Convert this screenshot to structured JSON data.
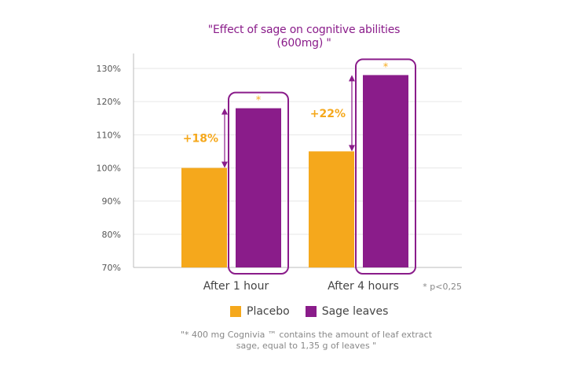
{
  "colors": {
    "placebo": "#F5A81C",
    "sage": "#8A1C8A",
    "title": "#8A1C8A",
    "delta": "#F5A81C",
    "star": "#F5A81C",
    "grid": "#E6E6E6"
  },
  "chart_data": {
    "type": "bar",
    "title_lines": [
      "\"Effect of sage on cognitive abilities",
      "(600mg) \""
    ],
    "categories": [
      "After 1 hour",
      "After 4 hours"
    ],
    "series": [
      {
        "name": "Placebo",
        "values": [
          100,
          105
        ]
      },
      {
        "name": "Sage leaves",
        "values": [
          118,
          128
        ]
      }
    ],
    "ylim": [
      70,
      130
    ],
    "yticks": [
      70,
      80,
      90,
      100,
      110,
      120,
      130
    ],
    "ytick_labels": [
      "70%",
      "80%",
      "90%",
      "100%",
      "110%",
      "120%",
      "130%"
    ],
    "grid": true,
    "legend_position": "bottom",
    "annotations": {
      "deltas": [
        "+18%",
        "+22%"
      ],
      "significance_marker": "*",
      "significance_note": "* p<0,25"
    }
  },
  "footnote": {
    "lines": [
      "\"* 400 mg Cognivia ™ contains the amount of leaf extract",
      "sage, equal to 1,35 g of leaves \""
    ]
  }
}
